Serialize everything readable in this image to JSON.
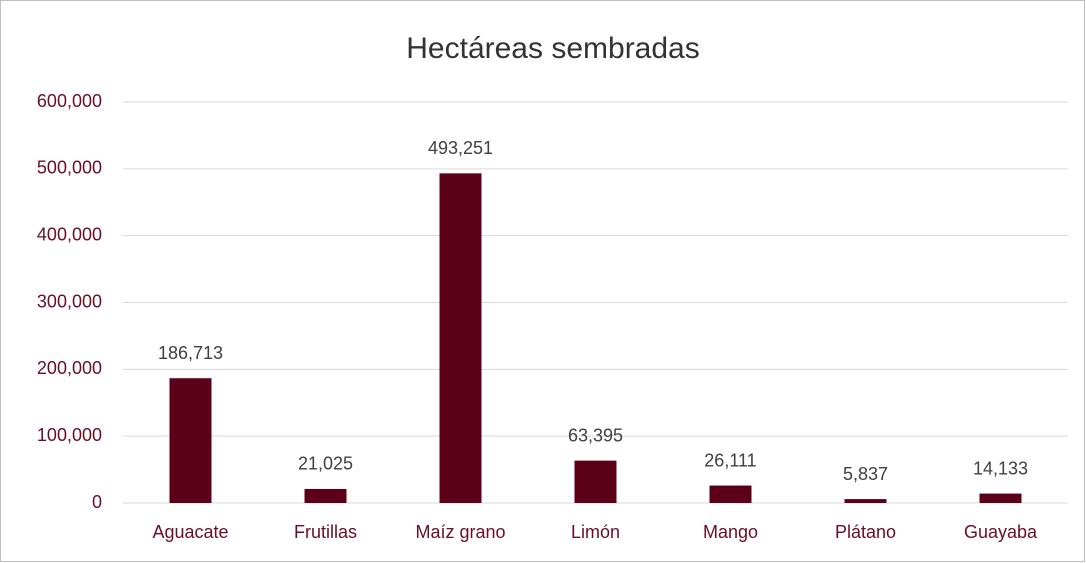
{
  "chart_data": {
    "type": "bar",
    "title": "Hectáreas sembradas",
    "categories": [
      "Aguacate",
      "Frutillas",
      "Maíz grano",
      "Limón",
      "Mango",
      "Plátano",
      "Guayaba"
    ],
    "values": [
      186713,
      21025,
      493251,
      63395,
      26111,
      5837,
      14133
    ],
    "value_labels": [
      "186,713",
      "21,025",
      "493,251",
      "63,395",
      "26,111",
      "5,837",
      "14,133"
    ],
    "color": "#5c0019",
    "ylim": [
      0,
      600000
    ],
    "yticks": [
      0,
      {
        "value": 100000,
        "label": "100,000"
      },
      {
        "value": 200000,
        "label": "200,000"
      },
      {
        "value": 300000,
        "label": "300,000"
      },
      {
        "value": 400000,
        "label": "400,000"
      },
      {
        "value": 500000,
        "label": "500,000"
      },
      {
        "value": 600000,
        "label": "600,000"
      }
    ],
    "grid": true
  }
}
